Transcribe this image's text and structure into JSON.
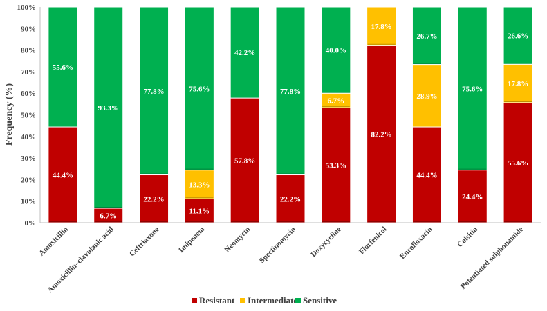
{
  "chart_data": {
    "type": "bar",
    "stacked": true,
    "title": "",
    "xlabel": "",
    "ylabel": "Frequency (%)",
    "ylim": [
      0,
      100
    ],
    "yticks": [
      "0%",
      "10%",
      "20%",
      "30%",
      "40%",
      "50%",
      "60%",
      "70%",
      "80%",
      "90%",
      "100%"
    ],
    "grid": false,
    "legend_position": "bottom",
    "categories": [
      "Amoxicillin",
      "Amoxicillin–clavulanic acid",
      "Ceftriaxone",
      "Imipenem",
      "Neomycin",
      "Spectinomycin",
      "Doxycycline",
      "Florfenicol",
      "Enrofloxacin",
      "Colsitin",
      "Potentiated sulphonamide"
    ],
    "series": [
      {
        "name": "Resistant",
        "color": "#c00000",
        "values": [
          44.4,
          6.7,
          22.2,
          11.1,
          57.8,
          22.2,
          53.3,
          82.2,
          44.4,
          24.4,
          55.6
        ],
        "labels": [
          "44.4%",
          "6.7%",
          "22.2%",
          "11.1%",
          "57.8%",
          "22.2%",
          "53.3%",
          "82.2%",
          "44.4%",
          "24.4%",
          "55.6%"
        ]
      },
      {
        "name": "Intermediate",
        "color": "#ffc000",
        "values": [
          0,
          0,
          0,
          13.3,
          0,
          0,
          6.7,
          17.8,
          28.9,
          0,
          17.8
        ],
        "labels": [
          "",
          "",
          "",
          "13.3%",
          "",
          "",
          "6.7%",
          "17.8%",
          "28.9%",
          "",
          "17.8%"
        ]
      },
      {
        "name": "Sensitive",
        "color": "#00b050",
        "values": [
          55.6,
          93.3,
          77.8,
          75.6,
          42.2,
          77.8,
          40.0,
          0,
          26.7,
          75.6,
          26.6
        ],
        "labels": [
          "55.6%",
          "93.3%",
          "77.8%",
          "75.6%",
          "42.2%",
          "77.8%",
          "40.0%",
          "",
          "26.7%",
          "75.6%",
          "26.6%"
        ]
      }
    ]
  }
}
